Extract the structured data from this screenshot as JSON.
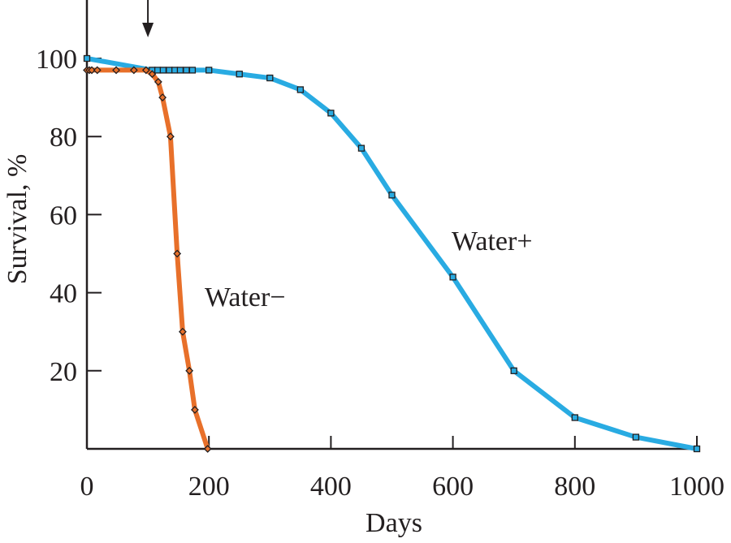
{
  "chart_data": {
    "type": "line",
    "xlabel": "Days",
    "ylabel": "Survival, %",
    "xlim": [
      0,
      1000
    ],
    "ylim": [
      0,
      100
    ],
    "x_ticks": [
      "0",
      "200",
      "400",
      "600",
      "800",
      "1000"
    ],
    "y_ticks": [
      "20",
      "40",
      "60",
      "80",
      "100"
    ],
    "grid": false,
    "arrow_at_day": 100,
    "series": [
      {
        "name": "Water−",
        "color": "#e8702a",
        "marker": "diamond",
        "x": [
          0,
          4,
          8,
          17,
          48,
          77,
          97,
          107,
          117,
          124,
          137,
          148,
          157,
          168,
          177,
          198
        ],
        "y": [
          97,
          97,
          97,
          97,
          97,
          97,
          97,
          96,
          94,
          90,
          80,
          50,
          30,
          20,
          10,
          0
        ]
      },
      {
        "name": "Water+",
        "color": "#29abe2",
        "marker": "square",
        "x": [
          0,
          107,
          116,
          125,
          135,
          144,
          153,
          163,
          173,
          200,
          250,
          300,
          350,
          400,
          450,
          500,
          600,
          700,
          800,
          900,
          1000
        ],
        "y": [
          100,
          97,
          97,
          97,
          97,
          97,
          97,
          97,
          97,
          97,
          96,
          95,
          92,
          86,
          77,
          65,
          44,
          20,
          8,
          3,
          0
        ]
      }
    ]
  }
}
